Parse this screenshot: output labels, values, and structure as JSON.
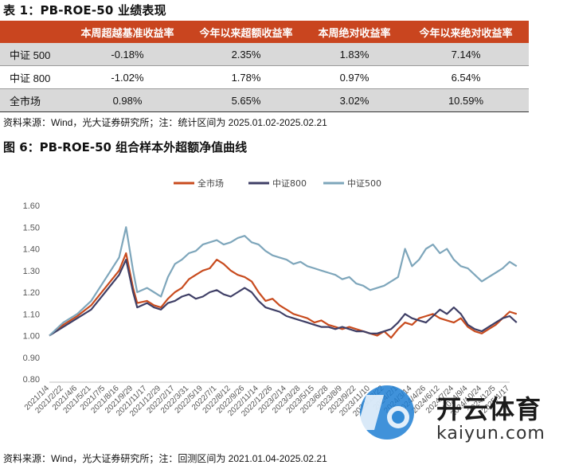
{
  "table": {
    "title": "表 1：PB-ROE-50 业绩表现",
    "headers": [
      "",
      "本周超越基准收益率",
      "今年以来超额收益率",
      "本周绝对收益率",
      "今年以来绝对收益率"
    ],
    "rows": [
      {
        "label": "中证 500",
        "cells": [
          "-0.18%",
          "2.35%",
          "1.83%",
          "7.14%"
        ]
      },
      {
        "label": "中证 800",
        "cells": [
          "-1.02%",
          "1.78%",
          "0.97%",
          "6.54%"
        ]
      },
      {
        "label": "全市场",
        "cells": [
          "0.98%",
          "5.65%",
          "3.02%",
          "10.59%"
        ]
      }
    ],
    "source": "资料来源：Wind，光大证券研究所；注：统计区间为 2025.01.02-2025.02.21"
  },
  "figure": {
    "title": "图 6：PB-ROE-50 组合样本外超额净值曲线",
    "source": "资料来源：Wind，光大证券研究所；注：回测区间为 2021.01.04-2025.02.21"
  },
  "watermark": {
    "text": "开云体育",
    "url": "kaiyun.com"
  },
  "chart_data": {
    "type": "line",
    "title": "",
    "xlabel": "",
    "ylabel": "",
    "ylim": [
      0.8,
      1.6
    ],
    "yticks": [
      "0.80",
      "0.90",
      "1.00",
      "1.10",
      "1.20",
      "1.30",
      "1.40",
      "1.50",
      "1.60"
    ],
    "grid": false,
    "legend": "top-center",
    "x_ticks": [
      "2021/1/4",
      "2021/2/22",
      "2021/4/6",
      "2021/5/21",
      "2021/7/5",
      "2021/8/16",
      "2021/9/29",
      "2021/11/17",
      "2021/12/29",
      "2022/2/17",
      "2022/3/31",
      "2022/5/19",
      "2022/7/1",
      "2022/8/12",
      "2022/9/26",
      "2022/11/14",
      "2022/12/26",
      "2023/2/14",
      "2023/3/28",
      "2023/5/15",
      "2023/6/28",
      "2023/8/9",
      "2023/9/22",
      "2023/11/10",
      "2023/12/22",
      "2024/2/1",
      "2024/3/14",
      "2024/4/26",
      "2024/6/12",
      "2024/7/24",
      "2024/9/4",
      "2024/10/24",
      "2024/12/5",
      "2025/1/17"
    ],
    "series": [
      {
        "name": "全市场",
        "color": "#c84b1e",
        "points": [
          [
            0,
            1.0
          ],
          [
            1,
            1.05
          ],
          [
            2,
            1.09
          ],
          [
            3,
            1.14
          ],
          [
            4,
            1.22
          ],
          [
            5,
            1.3
          ],
          [
            5.5,
            1.38
          ],
          [
            6,
            1.22
          ],
          [
            6.3,
            1.15
          ],
          [
            7,
            1.16
          ],
          [
            7.5,
            1.14
          ],
          [
            8,
            1.13
          ],
          [
            8.5,
            1.17
          ],
          [
            9,
            1.2
          ],
          [
            9.5,
            1.22
          ],
          [
            10,
            1.26
          ],
          [
            10.5,
            1.28
          ],
          [
            11,
            1.3
          ],
          [
            11.5,
            1.31
          ],
          [
            12,
            1.35
          ],
          [
            12.5,
            1.33
          ],
          [
            13,
            1.3
          ],
          [
            13.5,
            1.28
          ],
          [
            14,
            1.27
          ],
          [
            14.5,
            1.25
          ],
          [
            15,
            1.2
          ],
          [
            15.5,
            1.16
          ],
          [
            16,
            1.17
          ],
          [
            16.5,
            1.14
          ],
          [
            17,
            1.12
          ],
          [
            17.5,
            1.1
          ],
          [
            18,
            1.09
          ],
          [
            18.5,
            1.08
          ],
          [
            19,
            1.06
          ],
          [
            19.5,
            1.07
          ],
          [
            20,
            1.05
          ],
          [
            20.5,
            1.04
          ],
          [
            21,
            1.03
          ],
          [
            21.5,
            1.04
          ],
          [
            22,
            1.03
          ],
          [
            22.5,
            1.02
          ],
          [
            23,
            1.01
          ],
          [
            23.5,
            1.0
          ],
          [
            24,
            1.02
          ],
          [
            24.5,
            0.99
          ],
          [
            25,
            1.03
          ],
          [
            25.5,
            1.06
          ],
          [
            26,
            1.05
          ],
          [
            26.5,
            1.08
          ],
          [
            27,
            1.09
          ],
          [
            27.5,
            1.1
          ],
          [
            28,
            1.08
          ],
          [
            28.5,
            1.07
          ],
          [
            29,
            1.06
          ],
          [
            29.5,
            1.08
          ],
          [
            30,
            1.04
          ],
          [
            30.5,
            1.02
          ],
          [
            31,
            1.01
          ],
          [
            31.5,
            1.03
          ],
          [
            32,
            1.05
          ],
          [
            32.5,
            1.08
          ],
          [
            33,
            1.11
          ],
          [
            33.5,
            1.1
          ]
        ]
      },
      {
        "name": "中证800",
        "color": "#3f3f66",
        "points": [
          [
            0,
            1.0
          ],
          [
            1,
            1.04
          ],
          [
            2,
            1.08
          ],
          [
            3,
            1.12
          ],
          [
            4,
            1.2
          ],
          [
            5,
            1.28
          ],
          [
            5.5,
            1.35
          ],
          [
            6,
            1.2
          ],
          [
            6.3,
            1.13
          ],
          [
            7,
            1.15
          ],
          [
            7.5,
            1.13
          ],
          [
            8,
            1.12
          ],
          [
            8.5,
            1.15
          ],
          [
            9,
            1.16
          ],
          [
            9.5,
            1.18
          ],
          [
            10,
            1.19
          ],
          [
            10.5,
            1.17
          ],
          [
            11,
            1.18
          ],
          [
            11.5,
            1.2
          ],
          [
            12,
            1.21
          ],
          [
            12.5,
            1.19
          ],
          [
            13,
            1.18
          ],
          [
            13.5,
            1.2
          ],
          [
            14,
            1.22
          ],
          [
            14.5,
            1.2
          ],
          [
            15,
            1.16
          ],
          [
            15.5,
            1.13
          ],
          [
            16,
            1.12
          ],
          [
            16.5,
            1.11
          ],
          [
            17,
            1.09
          ],
          [
            17.5,
            1.08
          ],
          [
            18,
            1.07
          ],
          [
            18.5,
            1.06
          ],
          [
            19,
            1.05
          ],
          [
            19.5,
            1.04
          ],
          [
            20,
            1.04
          ],
          [
            20.5,
            1.03
          ],
          [
            21,
            1.04
          ],
          [
            21.5,
            1.03
          ],
          [
            22,
            1.02
          ],
          [
            22.5,
            1.02
          ],
          [
            23,
            1.01
          ],
          [
            23.5,
            1.01
          ],
          [
            24,
            1.02
          ],
          [
            24.5,
            1.03
          ],
          [
            25,
            1.06
          ],
          [
            25.5,
            1.1
          ],
          [
            26,
            1.08
          ],
          [
            26.5,
            1.07
          ],
          [
            27,
            1.06
          ],
          [
            27.5,
            1.09
          ],
          [
            28,
            1.12
          ],
          [
            28.5,
            1.1
          ],
          [
            29,
            1.13
          ],
          [
            29.5,
            1.1
          ],
          [
            30,
            1.05
          ],
          [
            30.5,
            1.03
          ],
          [
            31,
            1.02
          ],
          [
            31.5,
            1.04
          ],
          [
            32,
            1.06
          ],
          [
            32.5,
            1.08
          ],
          [
            33,
            1.09
          ],
          [
            33.5,
            1.06
          ]
        ]
      },
      {
        "name": "中证500",
        "color": "#7ea6bb",
        "points": [
          [
            0,
            1.0
          ],
          [
            1,
            1.06
          ],
          [
            2,
            1.1
          ],
          [
            3,
            1.16
          ],
          [
            4,
            1.26
          ],
          [
            5,
            1.36
          ],
          [
            5.5,
            1.5
          ],
          [
            6,
            1.3
          ],
          [
            6.3,
            1.2
          ],
          [
            7,
            1.22
          ],
          [
            7.5,
            1.2
          ],
          [
            8,
            1.18
          ],
          [
            8.5,
            1.27
          ],
          [
            9,
            1.33
          ],
          [
            9.5,
            1.35
          ],
          [
            10,
            1.38
          ],
          [
            10.5,
            1.39
          ],
          [
            11,
            1.42
          ],
          [
            11.5,
            1.43
          ],
          [
            12,
            1.44
          ],
          [
            12.5,
            1.42
          ],
          [
            13,
            1.43
          ],
          [
            13.5,
            1.45
          ],
          [
            14,
            1.46
          ],
          [
            14.5,
            1.43
          ],
          [
            15,
            1.42
          ],
          [
            15.5,
            1.39
          ],
          [
            16,
            1.37
          ],
          [
            16.5,
            1.36
          ],
          [
            17,
            1.35
          ],
          [
            17.5,
            1.33
          ],
          [
            18,
            1.34
          ],
          [
            18.5,
            1.32
          ],
          [
            19,
            1.31
          ],
          [
            19.5,
            1.3
          ],
          [
            20,
            1.29
          ],
          [
            20.5,
            1.28
          ],
          [
            21,
            1.26
          ],
          [
            21.5,
            1.27
          ],
          [
            22,
            1.24
          ],
          [
            22.5,
            1.23
          ],
          [
            23,
            1.21
          ],
          [
            23.5,
            1.22
          ],
          [
            24,
            1.23
          ],
          [
            24.5,
            1.25
          ],
          [
            25,
            1.27
          ],
          [
            25.5,
            1.4
          ],
          [
            26,
            1.32
          ],
          [
            26.5,
            1.35
          ],
          [
            27,
            1.4
          ],
          [
            27.5,
            1.42
          ],
          [
            28,
            1.38
          ],
          [
            28.5,
            1.4
          ],
          [
            29,
            1.35
          ],
          [
            29.5,
            1.32
          ],
          [
            30,
            1.31
          ],
          [
            30.5,
            1.28
          ],
          [
            31,
            1.25
          ],
          [
            31.5,
            1.27
          ],
          [
            32,
            1.29
          ],
          [
            32.5,
            1.31
          ],
          [
            33,
            1.34
          ],
          [
            33.5,
            1.32
          ]
        ]
      }
    ]
  }
}
